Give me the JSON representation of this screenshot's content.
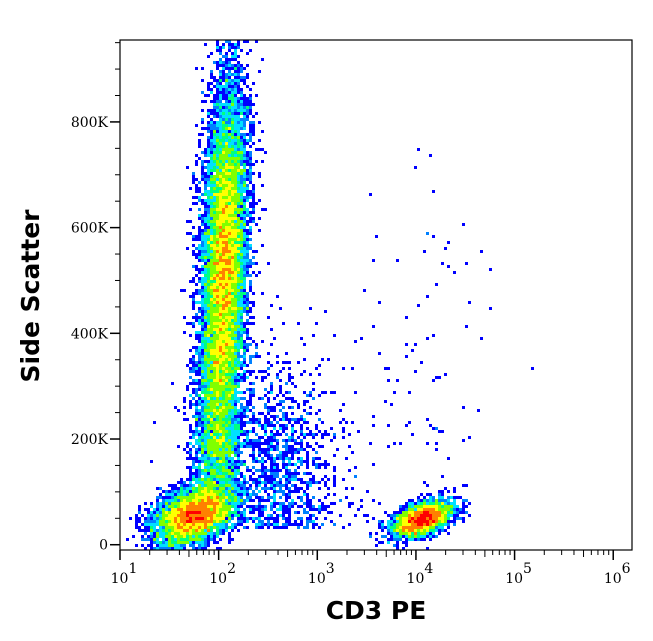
{
  "chart_data": {
    "type": "heatmap",
    "subtype": "flow-cytometry density dot plot",
    "xlabel": "CD3 PE",
    "ylabel": "Side Scatter",
    "x_scale": "log",
    "xlim": [
      10,
      1550000
    ],
    "ylim": [
      -10000,
      955000
    ],
    "x_ticks": [
      {
        "value": 10,
        "base": "10",
        "exp": "1"
      },
      {
        "value": 100,
        "base": "10",
        "exp": "2"
      },
      {
        "value": 1000,
        "base": "10",
        "exp": "3"
      },
      {
        "value": 10000,
        "base": "10",
        "exp": "4"
      },
      {
        "value": 100000,
        "base": "10",
        "exp": "5"
      },
      {
        "value": 1000000,
        "base": "10",
        "exp": "6"
      }
    ],
    "y_ticks": [
      {
        "value": 0,
        "label": "0"
      },
      {
        "value": 200000,
        "label": "200K"
      },
      {
        "value": 400000,
        "label": "400K"
      },
      {
        "value": 600000,
        "label": "600K"
      },
      {
        "value": 800000,
        "label": "800K"
      }
    ],
    "colormap": [
      "#0000ff",
      "#0080ff",
      "#00e0ff",
      "#00ff80",
      "#80ff00",
      "#ffff00",
      "#ff8000",
      "#ff0000"
    ],
    "grid": false,
    "legend": "none",
    "populations": [
      {
        "desc": "CD3- high side scatter",
        "x_center": 115,
        "x_log_sd": 0.11,
        "y_center": 530000,
        "y_sd": 170000,
        "events": 12000
      },
      {
        "desc": "CD3- low side scatter",
        "x_center": 55,
        "x_log_sd": 0.17,
        "y_center": 55000,
        "y_sd": 28000,
        "events": 5000
      },
      {
        "desc": "CD3+ low side scatter",
        "x_center": 11500,
        "x_log_sd": 0.13,
        "y_center": 48000,
        "y_sd": 17000,
        "events": 3000
      },
      {
        "desc": "intermediate stream",
        "x_center": 95,
        "x_log_sd": 0.12,
        "y_center": 200000,
        "y_sd": 110000,
        "events": 2500
      },
      {
        "desc": "sparse spread",
        "x_center": 350,
        "x_log_sd": 0.35,
        "y_center": 150000,
        "y_sd": 110000,
        "events": 1400
      },
      {
        "desc": "sparse high CD3",
        "x_center": 12000,
        "x_log_sd": 0.35,
        "y_center": 350000,
        "y_sd": 200000,
        "events": 90
      }
    ]
  }
}
